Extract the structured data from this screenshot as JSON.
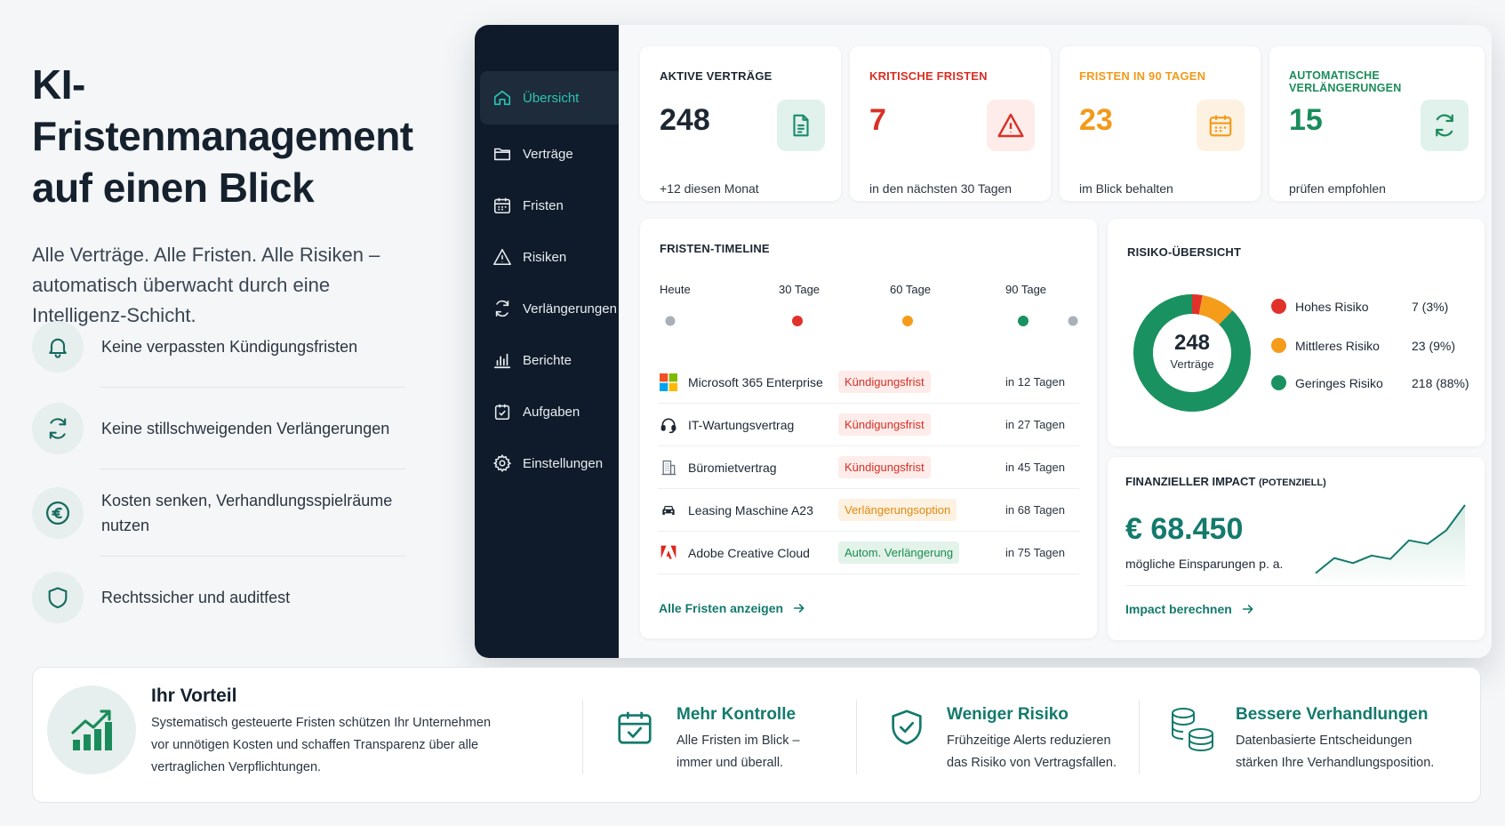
{
  "hero": {
    "title_line1": "KI-Fristenmanagement",
    "title_line2": "auf einen Blick",
    "lead_line1": "Alle Verträge. Alle Fristen. Alle Risiken –",
    "lead_line2": "automatisch überwacht durch eine",
    "lead_line3": "Intelligenz-Schicht."
  },
  "features": [
    {
      "icon": "bell-icon",
      "text": "Keine verpassten Kündigungsfristen"
    },
    {
      "icon": "refresh-icon",
      "text": "Keine stillschweigenden Verlängerungen"
    },
    {
      "icon": "euro-icon",
      "text_line1": "Kosten senken, Verhandlungsspielräume",
      "text_line2": "nutzen"
    },
    {
      "icon": "shield-icon",
      "text": "Rechtssicher und auditfest"
    }
  ],
  "sidebar": {
    "items": [
      {
        "label": "Übersicht",
        "icon": "home-icon",
        "active": true
      },
      {
        "label": "Verträge",
        "icon": "folder-icon"
      },
      {
        "label": "Fristen",
        "icon": "calendar-icon"
      },
      {
        "label": "Risiken",
        "icon": "warning-icon"
      },
      {
        "label": "Verlängerungen",
        "icon": "refresh-icon"
      },
      {
        "label": "Berichte",
        "icon": "bar-chart-icon"
      },
      {
        "label": "Aufgaben",
        "icon": "task-icon"
      },
      {
        "label": "Einstellungen",
        "icon": "gear-icon"
      }
    ]
  },
  "kpis": [
    {
      "label": "AKTIVE VERTRÄGE",
      "value": "248",
      "sub": "+12 diesen Monat",
      "color": "#1d2733",
      "icon": "document-icon"
    },
    {
      "label": "KRITISCHE FRISTEN",
      "value": "7",
      "sub": "in den nächsten 30 Tagen",
      "color": "#d93025",
      "icon": "warning-icon"
    },
    {
      "label": "FRISTEN IN 90 TAGEN",
      "value": "23",
      "sub": "im Blick behalten",
      "color": "#f29a1a",
      "icon": "calendar-icon"
    },
    {
      "label": "AUTOMATISCHE VERLÄNGERUNGEN",
      "value": "15",
      "sub": "prüfen empfohlen",
      "color": "#1a8c5b",
      "icon": "refresh-icon"
    }
  ],
  "timeline": {
    "title": "FRISTEN-TIMELINE",
    "labels": [
      "Heute",
      "30 Tage",
      "60 Tage",
      "90 Tage"
    ],
    "rows": [
      {
        "name": "Microsoft 365 Enterprise",
        "tag": "Kündigungsfrist",
        "tag_type": "red",
        "due": "in 12 Tagen",
        "icon": "microsoft-icon"
      },
      {
        "name": "IT-Wartungsvertrag",
        "tag": "Kündigungsfrist",
        "tag_type": "red",
        "due": "in 27 Tagen",
        "icon": "headset-icon"
      },
      {
        "name": "Büromietvertrag",
        "tag": "Kündigungsfrist",
        "tag_type": "red",
        "due": "in 45 Tagen",
        "icon": "building-icon"
      },
      {
        "name": "Leasing Maschine A23",
        "tag": "Verlängerungsoption",
        "tag_type": "orange",
        "due": "in 68 Tagen",
        "icon": "car-icon"
      },
      {
        "name": "Adobe Creative Cloud",
        "tag": "Autom. Verlängerung",
        "tag_type": "green",
        "due": "in 75 Tagen",
        "icon": "adobe-icon"
      }
    ],
    "link": "Alle Fristen anzeigen"
  },
  "risk": {
    "title": "RISIKO-ÜBERSICHT",
    "center_value": "248",
    "center_label": "Verträge",
    "segments": [
      {
        "label": "Hohes Risiko",
        "value": "7 (3%)",
        "count": 7,
        "color": "#e0322b"
      },
      {
        "label": "Mittleres Risiko",
        "value": "23 (9%)",
        "count": 23,
        "color": "#f59c1a"
      },
      {
        "label": "Geringes Risiko",
        "value": "218 (88%)",
        "count": 218,
        "color": "#1a9160"
      }
    ]
  },
  "impact": {
    "title": "FINANZIELLER IMPACT",
    "title_suffix": "(POTENZIELL)",
    "value": "€ 68.450",
    "sub": "mögliche Einsparungen p. a.",
    "link": "Impact berechnen",
    "trend": [
      2,
      5,
      4,
      5.5,
      4.8,
      8.5,
      7.8,
      10.5,
      15.5
    ]
  },
  "bottom": {
    "title": "Ihr Vorteil",
    "desc_line1": "Systematisch gesteuerte Fristen schützen Ihr Unternehmen",
    "desc_line2": "vor unnötigen Kosten und schaffen Transparenz über alle",
    "desc_line3": "vertraglichen Verpflichtungen.",
    "items": [
      {
        "title": "Mehr Kontrolle",
        "line1": "Alle Fristen im Blick –",
        "line2": "immer und überall.",
        "icon": "calendar-check-icon"
      },
      {
        "title": "Weniger Risiko",
        "line1": "Frühzeitige Alerts reduzieren",
        "line2": "das Risiko von Vertragsfallen.",
        "icon": "shield-check-icon"
      },
      {
        "title": "Bessere Verhandlungen",
        "line1": "Datenbasierte Entscheidungen",
        "line2": "stärken Ihre Verhandlungsposition.",
        "icon": "coins-icon"
      }
    ]
  }
}
